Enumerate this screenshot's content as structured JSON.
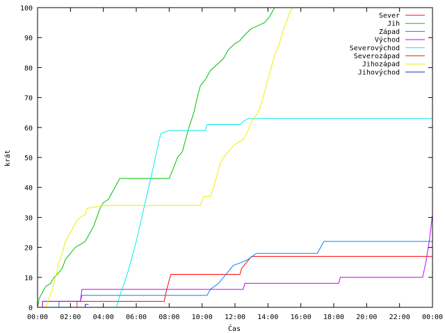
{
  "chart_data": {
    "type": "line",
    "title": "",
    "xlabel": "Čas",
    "ylabel": "krát",
    "xlim": [
      0,
      24
    ],
    "ylim": [
      0,
      100
    ],
    "grid": false,
    "legend_position": "top-right",
    "xticks": [
      {
        "v": 0,
        "label": "00:00"
      },
      {
        "v": 2,
        "label": "02:00"
      },
      {
        "v": 4,
        "label": "04:00"
      },
      {
        "v": 6,
        "label": "06:00"
      },
      {
        "v": 8,
        "label": "08:00"
      },
      {
        "v": 10,
        "label": "10:00"
      },
      {
        "v": 12,
        "label": "12:00"
      },
      {
        "v": 14,
        "label": "14:00"
      },
      {
        "v": 16,
        "label": "16:00"
      },
      {
        "v": 18,
        "label": "18:00"
      },
      {
        "v": 20,
        "label": "20:00"
      },
      {
        "v": 22,
        "label": "22:00"
      },
      {
        "v": 24,
        "label": "00:00"
      }
    ],
    "yticks": [
      {
        "v": 0,
        "label": "0"
      },
      {
        "v": 10,
        "label": "10"
      },
      {
        "v": 20,
        "label": "20"
      },
      {
        "v": 30,
        "label": "30"
      },
      {
        "v": 40,
        "label": "40"
      },
      {
        "v": 50,
        "label": "50"
      },
      {
        "v": 60,
        "label": "60"
      },
      {
        "v": 70,
        "label": "70"
      },
      {
        "v": 80,
        "label": "80"
      },
      {
        "v": 90,
        "label": "90"
      },
      {
        "v": 100,
        "label": "100"
      }
    ],
    "series": [
      {
        "name": "Sever",
        "color": "#ff0000",
        "points": [
          [
            0.3,
            0
          ],
          [
            0.3,
            2
          ],
          [
            7.7,
            2
          ],
          [
            7.85,
            6
          ],
          [
            7.95,
            8
          ],
          [
            8.1,
            11
          ],
          [
            12.3,
            11
          ],
          [
            12.4,
            13
          ],
          [
            12.7,
            15
          ],
          [
            12.85,
            16
          ],
          [
            13.0,
            17
          ],
          [
            24,
            17
          ]
        ]
      },
      {
        "name": "Jih",
        "color": "#00c000",
        "points": [
          [
            0,
            0
          ],
          [
            0.1,
            3
          ],
          [
            0.3,
            5
          ],
          [
            0.5,
            7
          ],
          [
            0.8,
            8
          ],
          [
            1.0,
            10
          ],
          [
            1.2,
            11
          ],
          [
            1.5,
            13
          ],
          [
            1.7,
            16
          ],
          [
            2.0,
            18
          ],
          [
            2.3,
            20
          ],
          [
            2.6,
            21
          ],
          [
            2.9,
            22
          ],
          [
            3.1,
            24
          ],
          [
            3.4,
            27
          ],
          [
            3.6,
            30
          ],
          [
            3.8,
            33
          ],
          [
            4.0,
            35
          ],
          [
            4.3,
            36
          ],
          [
            4.5,
            38
          ],
          [
            4.8,
            41
          ],
          [
            5.0,
            43
          ],
          [
            8.0,
            43
          ],
          [
            8.3,
            47
          ],
          [
            8.5,
            50
          ],
          [
            8.8,
            52
          ],
          [
            9.0,
            56
          ],
          [
            9.2,
            60
          ],
          [
            9.5,
            65
          ],
          [
            9.7,
            70
          ],
          [
            9.9,
            74
          ],
          [
            10.2,
            76
          ],
          [
            10.5,
            79
          ],
          [
            10.9,
            81
          ],
          [
            11.3,
            83
          ],
          [
            11.6,
            86
          ],
          [
            12.0,
            88
          ],
          [
            12.3,
            89
          ],
          [
            12.6,
            91
          ],
          [
            13.0,
            93
          ],
          [
            13.4,
            94
          ],
          [
            13.8,
            95
          ],
          [
            14.1,
            97
          ],
          [
            14.4,
            100
          ]
        ]
      },
      {
        "name": "Západ",
        "color": "#0080ff",
        "points": [
          [
            1.3,
            0
          ],
          [
            1.3,
            2
          ],
          [
            2.6,
            2
          ],
          [
            2.7,
            4
          ],
          [
            10.3,
            4
          ],
          [
            10.5,
            6
          ],
          [
            11.0,
            8
          ],
          [
            11.3,
            10
          ],
          [
            11.6,
            12
          ],
          [
            11.9,
            14
          ],
          [
            12.4,
            15
          ],
          [
            12.8,
            16
          ],
          [
            13.3,
            18
          ],
          [
            17.0,
            18
          ],
          [
            17.2,
            20
          ],
          [
            17.4,
            22
          ],
          [
            24,
            22
          ]
        ]
      },
      {
        "name": "Východ",
        "color": "#c000ff",
        "points": [
          [
            0.3,
            0
          ],
          [
            0.3,
            2
          ],
          [
            2.6,
            2
          ],
          [
            2.7,
            6
          ],
          [
            12.5,
            6
          ],
          [
            12.6,
            8
          ],
          [
            18.3,
            8
          ],
          [
            18.4,
            10
          ],
          [
            23.4,
            10
          ],
          [
            23.6,
            15
          ],
          [
            23.8,
            22
          ],
          [
            24,
            31
          ]
        ]
      },
      {
        "name": "Severovýchod",
        "color": "#00eeee",
        "points": [
          [
            4.8,
            0
          ],
          [
            5.0,
            4
          ],
          [
            5.2,
            7
          ],
          [
            5.5,
            12
          ],
          [
            6.0,
            22
          ],
          [
            6.5,
            34
          ],
          [
            7.0,
            46
          ],
          [
            7.4,
            56
          ],
          [
            7.5,
            58
          ],
          [
            8.0,
            59
          ],
          [
            10.2,
            59
          ],
          [
            10.3,
            61
          ],
          [
            12.3,
            61
          ],
          [
            12.5,
            62
          ],
          [
            12.8,
            63
          ],
          [
            24,
            63
          ]
        ]
      },
      {
        "name": "Severozápad",
        "color": "#c04000",
        "points": [
          [
            2.4,
            0
          ],
          [
            2.4,
            2
          ],
          [
            3.0,
            2
          ]
        ]
      },
      {
        "name": "Jihozápad",
        "color": "#eeee00",
        "points": [
          [
            0.5,
            0
          ],
          [
            0.7,
            3
          ],
          [
            0.9,
            6
          ],
          [
            1.1,
            10
          ],
          [
            1.3,
            15
          ],
          [
            1.5,
            18
          ],
          [
            1.7,
            22
          ],
          [
            1.9,
            24
          ],
          [
            2.1,
            26
          ],
          [
            2.4,
            29
          ],
          [
            2.6,
            30
          ],
          [
            2.9,
            31
          ],
          [
            3.0,
            33
          ],
          [
            4.0,
            34
          ],
          [
            9.9,
            34
          ],
          [
            10.1,
            37
          ],
          [
            10.5,
            37
          ],
          [
            10.7,
            40
          ],
          [
            10.9,
            44
          ],
          [
            11.1,
            48
          ],
          [
            11.3,
            50
          ],
          [
            11.6,
            52
          ],
          [
            11.9,
            54
          ],
          [
            12.2,
            55
          ],
          [
            12.5,
            56
          ],
          [
            12.8,
            59
          ],
          [
            13.0,
            62
          ],
          [
            13.4,
            65
          ],
          [
            13.6,
            68
          ],
          [
            13.8,
            72
          ],
          [
            14.0,
            76
          ],
          [
            14.2,
            80
          ],
          [
            14.4,
            84
          ],
          [
            14.7,
            88
          ],
          [
            14.9,
            92
          ],
          [
            15.1,
            95
          ],
          [
            15.3,
            98
          ],
          [
            15.5,
            100
          ]
        ]
      },
      {
        "name": "Jihovýchod",
        "color": "#2020c0",
        "points": [
          [
            2.9,
            0
          ],
          [
            2.9,
            1
          ],
          [
            3.1,
            1
          ]
        ]
      }
    ]
  }
}
